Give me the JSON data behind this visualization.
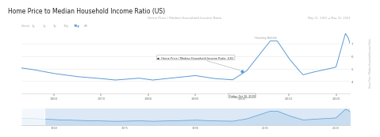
{
  "title": "Home Price to Median Household Income Ratio (US)",
  "chart_subtitle": "Home Price / Median Household Income Ratio",
  "date_range": "May 11, 1953 → May 31, 2023",
  "tooltip_label": "Home Price / Median Household Income Ratio: 4.81",
  "tooltip_date": "Friday, Oct 10, 2000",
  "housing_bubble_label": "Housing Bubble",
  "y_axis_label": "Home Price / Median Household Income Ratio",
  "bg_color": "#ffffff",
  "line_color": "#5b9bd5",
  "grid_color": "#e8e8e8",
  "nav_fill_color": "#c5ddf0",
  "nav_bg_color": "#dce8f5",
  "text_color": "#555555",
  "zoom_buttons": [
    "Zoom",
    "1y",
    "1y",
    "3y",
    "10y",
    "70y",
    "All"
  ],
  "zoom_active": "70y",
  "yticks": [
    4,
    5,
    6,
    7
  ],
  "xticks_main": [
    1960,
    1970,
    1980,
    1990,
    2000,
    2010,
    2020
  ],
  "xticks_nav": [
    1960,
    1975,
    1990,
    2005,
    2020
  ],
  "ylim": [
    3.0,
    8.0
  ],
  "xlim": [
    1953,
    2023
  ],
  "tooltip_x": 2000,
  "tooltip_y": 4.81,
  "housing_bubble_x": 2005,
  "housing_bubble_y": 7.4
}
